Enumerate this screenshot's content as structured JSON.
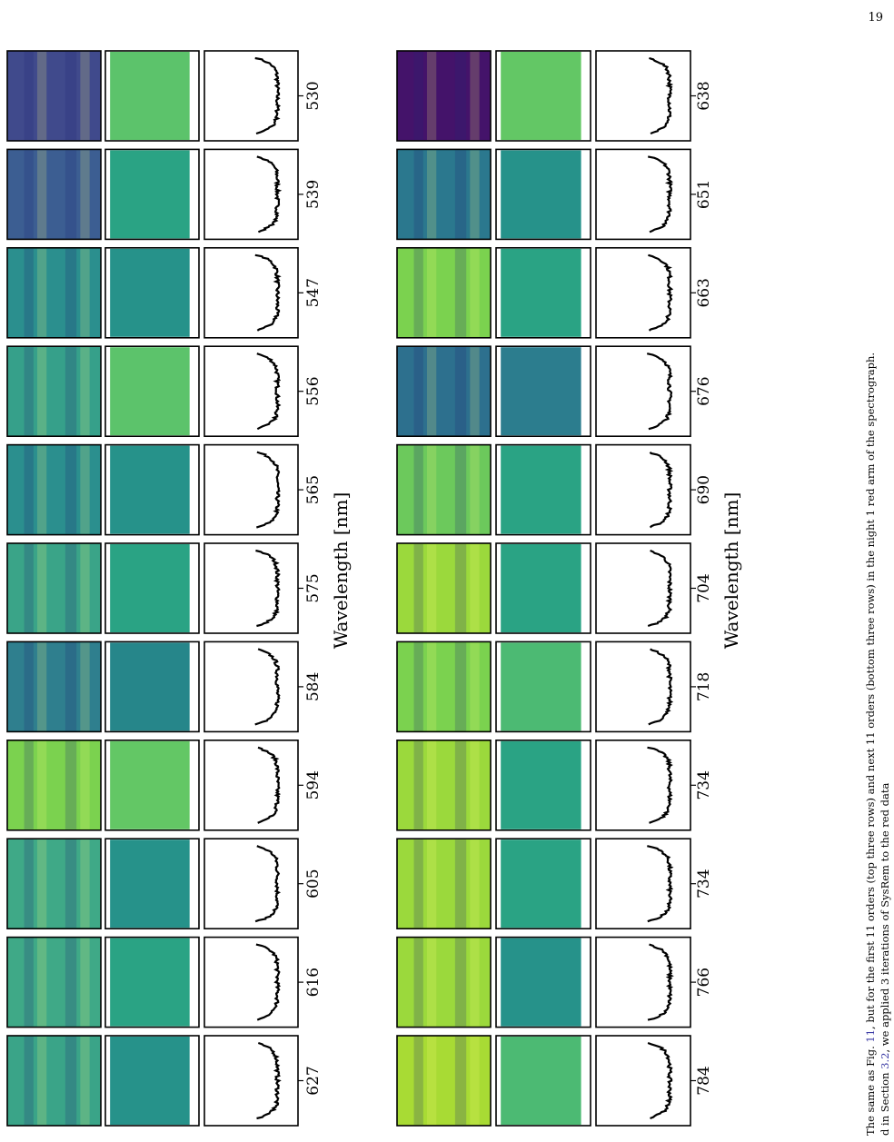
{
  "page": {
    "number": "19"
  },
  "figure": {
    "axis_label": "Wavelength [nm]",
    "top_block": {
      "orders": [
        {
          "wavelength": "530",
          "raw_color": "#404a8c",
          "residual_color": "#5cc36b",
          "raw_alt": false
        },
        {
          "wavelength": "539",
          "raw_color": "#3c5e92",
          "residual_color": "#2aa384",
          "raw_alt": false
        },
        {
          "wavelength": "547",
          "raw_color": "#2b8f8e",
          "residual_color": "#26928a",
          "raw_alt": false
        },
        {
          "wavelength": "556",
          "raw_color": "#36a08a",
          "residual_color": "#5cc36b",
          "raw_alt": false
        },
        {
          "wavelength": "565",
          "raw_color": "#2b8f8e",
          "residual_color": "#26928a",
          "raw_alt": false
        },
        {
          "wavelength": "575",
          "raw_color": "#3aa488",
          "residual_color": "#2aa384",
          "raw_alt": false
        },
        {
          "wavelength": "584",
          "raw_color": "#2f7f8e",
          "residual_color": "#26868a",
          "raw_alt": false
        },
        {
          "wavelength": "594",
          "raw_color": "#7bd24f",
          "residual_color": "#63c765",
          "raw_alt": false
        },
        {
          "wavelength": "605",
          "raw_color": "#3fa987",
          "residual_color": "#26928a",
          "raw_alt": false
        },
        {
          "wavelength": "616",
          "raw_color": "#3fa987",
          "residual_color": "#2aa384",
          "raw_alt": false
        },
        {
          "wavelength": "627",
          "raw_color": "#3aa488",
          "residual_color": "#26928a",
          "raw_alt": false
        }
      ]
    },
    "bottom_block": {
      "orders": [
        {
          "wavelength": "638",
          "raw_color": "#44136a",
          "residual_color": "#63c765",
          "raw_alt": false
        },
        {
          "wavelength": "651",
          "raw_color": "#2b788e",
          "residual_color": "#26928a",
          "raw_alt": false
        },
        {
          "wavelength": "663",
          "raw_color": "#7bd24f",
          "residual_color": "#2aa384",
          "raw_alt": false
        },
        {
          "wavelength": "676",
          "raw_color": "#2d708e",
          "residual_color": "#2c7d8e",
          "raw_alt": false
        },
        {
          "wavelength": "690",
          "raw_color": "#6cc95c",
          "residual_color": "#2aa384",
          "raw_alt": false
        },
        {
          "wavelength": "704",
          "raw_color": "#9bd93c",
          "residual_color": "#2aa384",
          "raw_alt": false
        },
        {
          "wavelength": "718",
          "raw_color": "#7bd24f",
          "residual_color": "#4cba73",
          "raw_alt": false
        },
        {
          "wavelength": "734",
          "raw_color": "#9bd93c",
          "residual_color": "#2aa384",
          "raw_alt": false
        },
        {
          "wavelength": "734",
          "raw_color": "#9bd93c",
          "residual_color": "#2aa384",
          "raw_alt": false
        },
        {
          "wavelength": "766",
          "raw_color": "#9bd93c",
          "residual_color": "#26928a",
          "raw_alt": false
        },
        {
          "wavelength": "784",
          "raw_color": "#a8db34",
          "residual_color": "#4cba73",
          "raw_alt": false
        }
      ]
    }
  },
  "caption": {
    "line1_pre": "The same as Fig. ",
    "line1_ref": "11",
    "line1_post": ", but for the first 11 orders (top three rows) and next 11 orders (bottom three rows) in the night 1 red arm of the spectrograph.",
    "line2_pre": "d in Section ",
    "line2_ref": "3.2",
    "line2_post": ", we applied 3 iterations of SysRem to the red data"
  }
}
